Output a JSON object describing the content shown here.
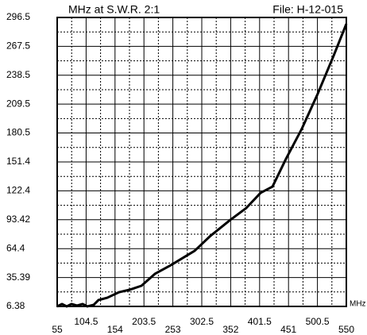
{
  "chart_data": {
    "type": "line",
    "title": "MHz at S.W.R.  2:1",
    "subtitle": "File:  H-12-015",
    "x_label": "MHz",
    "x": [
      55,
      63.2,
      71.3,
      79.5,
      89,
      98.5,
      106.7,
      117.6,
      125.7,
      140.7,
      161.1,
      178.8,
      199.2,
      222.3,
      249.5,
      290.3,
      317.5,
      351.5,
      378.7,
      403.2,
      423.6,
      446.7,
      473.9,
      501.1,
      528.3,
      550
    ],
    "series": [
      {
        "color": "#000000",
        "values": [
          6.38,
          8.8,
          6.4,
          8.8,
          7.2,
          8.8,
          6.4,
          8.0,
          12.8,
          15.1,
          20.7,
          23.1,
          27.1,
          39.1,
          47.8,
          62.2,
          77.3,
          93.3,
          105.2,
          120.4,
          126.7,
          154.6,
          184.9,
          220,
          258.2,
          290.1
        ]
      }
    ],
    "xlim": [
      55,
      550
    ],
    "xticks": [
      55,
      104.5,
      154,
      203.5,
      253,
      302.5,
      352,
      401.5,
      451,
      500.5,
      550
    ],
    "ylim": [
      6.38,
      296.5
    ],
    "yticks": [
      6.38,
      35.39,
      64.4,
      93.42,
      122.4,
      151.4,
      180.5,
      209.5,
      238.5,
      267.5,
      296.5
    ],
    "grid": true
  }
}
